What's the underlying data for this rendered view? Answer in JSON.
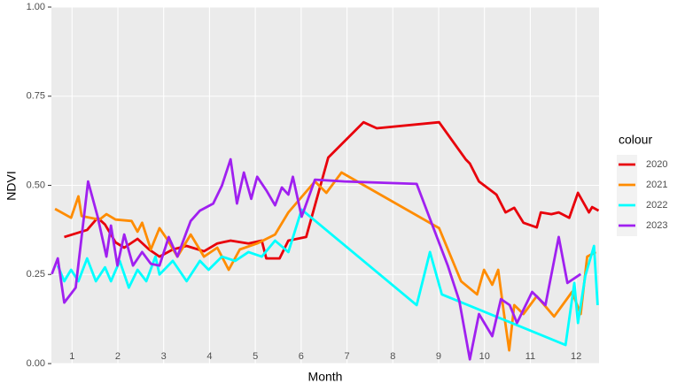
{
  "chart_data": {
    "type": "line",
    "x_label": "Month",
    "y_label": "NDVI",
    "legend_title": "colour",
    "xlim": [
      0.55,
      12.5
    ],
    "xticks": [
      1,
      2,
      3,
      4,
      5,
      6,
      7,
      8,
      9,
      10,
      11,
      12
    ],
    "ylim": [
      0,
      1
    ],
    "yticks": [
      {
        "value": 0,
        "label": "0.00"
      },
      {
        "value": 0.25,
        "label": "0.25"
      },
      {
        "value": 0.5,
        "label": "0.50"
      },
      {
        "value": 0.75,
        "label": "0.75"
      },
      {
        "value": 1,
        "label": "1.00"
      }
    ],
    "grid": true,
    "legend": "right",
    "series": [
      {
        "name": "2020",
        "color": "#e8000b",
        "x": [
          0.83,
          1.33,
          1.56,
          1.72,
          1.95,
          2.14,
          2.43,
          2.68,
          2.91,
          3.2,
          3.5,
          3.88,
          4.17,
          4.46,
          4.85,
          5.14,
          5.24,
          5.53,
          5.72,
          6.11,
          6.59,
          7.36,
          7.65,
          9.01,
          9.59,
          9.68,
          9.88,
          10.26,
          10.46,
          10.65,
          10.85,
          11.14,
          11.23,
          11.46,
          11.62,
          11.85,
          12.04,
          12.28,
          12.35,
          12.49
        ],
        "values": [
          0.355,
          0.375,
          0.409,
          0.39,
          0.34,
          0.325,
          0.35,
          0.32,
          0.3,
          0.32,
          0.33,
          0.315,
          0.337,
          0.345,
          0.337,
          0.345,
          0.295,
          0.295,
          0.345,
          0.355,
          0.578,
          0.677,
          0.66,
          0.677,
          0.573,
          0.561,
          0.511,
          0.474,
          0.424,
          0.437,
          0.395,
          0.382,
          0.424,
          0.419,
          0.424,
          0.409,
          0.479,
          0.424,
          0.439,
          0.429
        ]
      },
      {
        "name": "2021",
        "color": "#ff8c00",
        "x": [
          0.63,
          0.98,
          1.14,
          1.21,
          1.6,
          1.75,
          1.95,
          2.3,
          2.43,
          2.53,
          2.72,
          2.91,
          3.07,
          3.3,
          3.59,
          3.88,
          4.17,
          4.42,
          4.66,
          5.04,
          5.43,
          5.72,
          6.3,
          6.55,
          6.88,
          9.01,
          9.49,
          9.84,
          9.99,
          10.17,
          10.3,
          10.42,
          10.54,
          10.65,
          10.85,
          11.14,
          11.52,
          11.91,
          12.1,
          12.24,
          12.43
        ],
        "values": [
          0.434,
          0.409,
          0.469,
          0.414,
          0.404,
          0.419,
          0.404,
          0.4,
          0.37,
          0.395,
          0.32,
          0.38,
          0.35,
          0.3,
          0.362,
          0.3,
          0.325,
          0.263,
          0.32,
          0.337,
          0.362,
          0.424,
          0.511,
          0.479,
          0.536,
          0.38,
          0.231,
          0.194,
          0.263,
          0.221,
          0.263,
          0.146,
          0.037,
          0.164,
          0.139,
          0.189,
          0.132,
          0.201,
          0.139,
          0.3,
          0.313
        ]
      },
      {
        "name": "2022",
        "color": "#00ffff",
        "x": [
          0.69,
          0.83,
          0.98,
          1.14,
          1.33,
          1.52,
          1.72,
          1.85,
          2.04,
          2.24,
          2.43,
          2.62,
          2.82,
          2.91,
          3.2,
          3.5,
          3.79,
          3.98,
          4.27,
          4.56,
          4.85,
          5.14,
          5.43,
          5.72,
          6.01,
          8.52,
          8.81,
          9.07,
          11.77,
          11.96,
          12.04,
          12.2,
          12.39,
          12.47
        ],
        "values": [
          0.275,
          0.231,
          0.263,
          0.231,
          0.295,
          0.231,
          0.27,
          0.231,
          0.288,
          0.213,
          0.263,
          0.231,
          0.3,
          0.25,
          0.288,
          0.231,
          0.288,
          0.263,
          0.3,
          0.288,
          0.313,
          0.3,
          0.345,
          0.313,
          0.432,
          0.164,
          0.313,
          0.194,
          0.052,
          0.226,
          0.114,
          0.246,
          0.33,
          0.164
        ]
      },
      {
        "name": "2023",
        "color": "#a020f0",
        "x": [
          0.56,
          0.69,
          0.83,
          1.08,
          1.35,
          1.56,
          1.75,
          1.85,
          1.99,
          2.14,
          2.33,
          2.53,
          2.72,
          2.91,
          3.11,
          3.3,
          3.5,
          3.59,
          3.79,
          4.08,
          4.27,
          4.46,
          4.6,
          4.75,
          4.91,
          5.04,
          5.24,
          5.43,
          5.58,
          5.72,
          5.82,
          6.01,
          6.3,
          6.94,
          8.52,
          9.2,
          9.45,
          9.68,
          9.88,
          10.17,
          10.36,
          10.55,
          10.71,
          11.04,
          11.33,
          11.62,
          11.81,
          12.1
        ],
        "values": [
          0.251,
          0.295,
          0.171,
          0.213,
          0.511,
          0.412,
          0.3,
          0.387,
          0.275,
          0.362,
          0.275,
          0.313,
          0.28,
          0.275,
          0.355,
          0.3,
          0.37,
          0.4,
          0.429,
          0.449,
          0.499,
          0.573,
          0.449,
          0.536,
          0.462,
          0.524,
          0.486,
          0.444,
          0.494,
          0.474,
          0.524,
          0.412,
          0.516,
          0.511,
          0.504,
          0.275,
          0.176,
          0.012,
          0.139,
          0.077,
          0.181,
          0.164,
          0.114,
          0.201,
          0.164,
          0.355,
          0.226,
          0.251
        ]
      }
    ]
  }
}
